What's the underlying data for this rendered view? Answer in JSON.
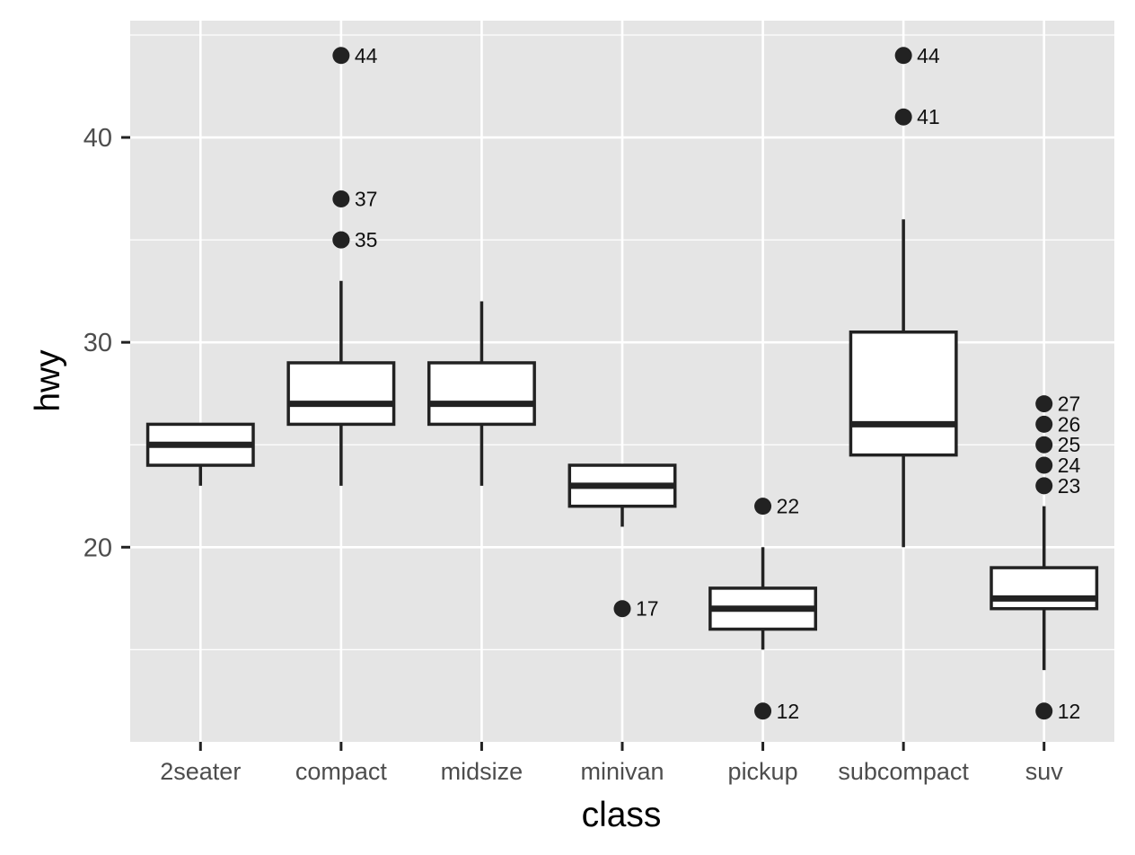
{
  "chart_data": {
    "type": "boxplot",
    "xlabel": "class",
    "ylabel": "hwy",
    "ylim": [
      10.5,
      45.7
    ],
    "y_ticks": [
      20,
      30,
      40
    ],
    "y_minor_ticks": [
      15,
      25,
      35,
      45
    ],
    "grid": true,
    "categories": [
      "2seater",
      "compact",
      "midsize",
      "minivan",
      "pickup",
      "subcompact",
      "suv"
    ],
    "boxes": [
      {
        "category": "2seater",
        "lower_whisker": 23,
        "q1": 24,
        "median": 25,
        "q3": 26,
        "upper_whisker": 26,
        "outliers": []
      },
      {
        "category": "compact",
        "lower_whisker": 23,
        "q1": 26,
        "median": 27,
        "q3": 29,
        "upper_whisker": 33,
        "outliers": [
          44,
          37,
          35,
          35
        ]
      },
      {
        "category": "midsize",
        "lower_whisker": 23,
        "q1": 26,
        "median": 27,
        "q3": 29,
        "upper_whisker": 32,
        "outliers": []
      },
      {
        "category": "minivan",
        "lower_whisker": 21,
        "q1": 22,
        "median": 23,
        "q3": 24,
        "upper_whisker": 24,
        "outliers": [
          17
        ]
      },
      {
        "category": "pickup",
        "lower_whisker": 15,
        "q1": 16,
        "median": 17,
        "q3": 18,
        "upper_whisker": 20,
        "outliers": [
          22,
          12
        ]
      },
      {
        "category": "subcompact",
        "lower_whisker": 20,
        "q1": 24.5,
        "median": 26,
        "q3": 30.5,
        "upper_whisker": 36,
        "outliers": [
          44,
          41
        ]
      },
      {
        "category": "suv",
        "lower_whisker": 14,
        "q1": 17,
        "median": 17.5,
        "q3": 19,
        "upper_whisker": 22,
        "outliers": [
          27,
          26,
          25,
          24,
          23,
          12
        ]
      }
    ],
    "colors": {
      "panel": "#e5e5e5",
      "grid": "#ffffff",
      "ink": "#222222"
    }
  }
}
